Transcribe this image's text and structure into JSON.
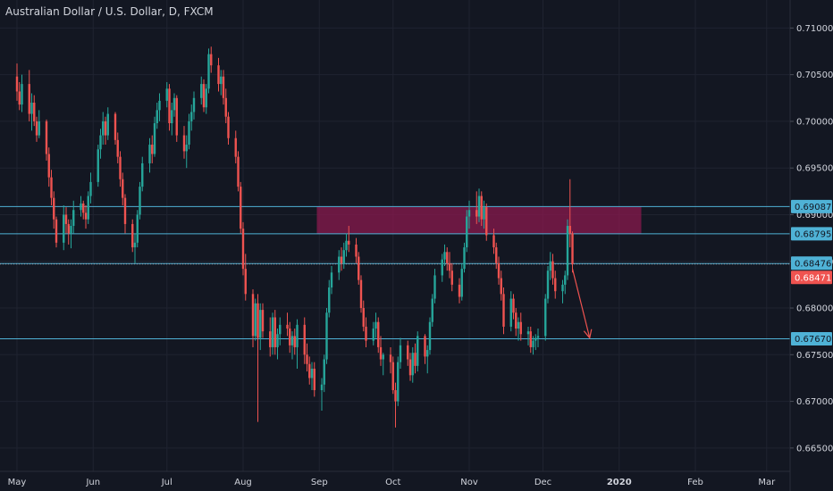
{
  "chart_title": "Australian Dollar / U.S. Dollar, D, FXCM",
  "colors": {
    "background": "#131722",
    "grid": "#1f2330",
    "up": "#26a69a",
    "down": "#ef5350",
    "level_line": "#4fb2d6",
    "zone_fill": "#8a1a4e",
    "price_tag_bg": "#4fb2d6",
    "current_price_bg": "#ef5350"
  },
  "chart_data": {
    "type": "candlestick",
    "title": "Australian Dollar / U.S. Dollar, D, FXCM",
    "x_tick_labels": [
      "May",
      "Jun",
      "Jul",
      "Aug",
      "Sep",
      "Oct",
      "Nov",
      "Dec",
      "2020",
      "Feb",
      "Mar"
    ],
    "y_tick_labels": [
      "0.71000",
      "0.70500",
      "0.70000",
      "0.69500",
      "0.69000",
      "0.68500",
      "0.68000",
      "0.67500",
      "0.67000",
      "0.66500"
    ],
    "ylim": [
      0.6625,
      0.713
    ],
    "levels": [
      {
        "label": "0.69087",
        "value": 0.69087
      },
      {
        "label": "0.68795",
        "value": 0.68795
      },
      {
        "label": "0.68476",
        "value": 0.68476
      },
      {
        "label": "0.67670",
        "value": 0.6767
      }
    ],
    "current_price": {
      "label": "0.68471",
      "value": 0.68471
    },
    "supply_zone": {
      "from": "Sep",
      "to": "Jan",
      "low": 0.68795,
      "high": 0.69087
    },
    "projection": {
      "from_date": "2019-12-13",
      "from_value": 0.6842,
      "to_date": "2019-12-20",
      "to_value": 0.6768
    },
    "candles": [
      [
        "2019-05-01",
        0.7048,
        0.7062,
        0.7022,
        0.7032
      ],
      [
        "2019-05-02",
        0.7032,
        0.7042,
        0.7012,
        0.7018
      ],
      [
        "2019-05-03",
        0.7018,
        0.705,
        0.701,
        0.704
      ],
      [
        "2019-05-06",
        0.704,
        0.7055,
        0.7,
        0.7008
      ],
      [
        "2019-05-07",
        0.7008,
        0.703,
        0.699,
        0.702
      ],
      [
        "2019-05-08",
        0.702,
        0.7028,
        0.6995,
        0.7
      ],
      [
        "2019-05-09",
        0.7,
        0.7005,
        0.6978,
        0.6985
      ],
      [
        "2019-05-10",
        0.6985,
        0.7012,
        0.6982,
        0.7
      ],
      [
        "2019-05-13",
        0.7,
        0.7002,
        0.6958,
        0.6965
      ],
      [
        "2019-05-14",
        0.6965,
        0.6972,
        0.693,
        0.694
      ],
      [
        "2019-05-15",
        0.694,
        0.6948,
        0.691,
        0.6918
      ],
      [
        "2019-05-16",
        0.6918,
        0.6925,
        0.6885,
        0.6895
      ],
      [
        "2019-05-17",
        0.6895,
        0.6898,
        0.6865,
        0.687
      ],
      [
        "2019-05-20",
        0.687,
        0.691,
        0.6862,
        0.69
      ],
      [
        "2019-05-21",
        0.69,
        0.6908,
        0.688,
        0.689
      ],
      [
        "2019-05-22",
        0.689,
        0.6895,
        0.6868,
        0.688
      ],
      [
        "2019-05-23",
        0.688,
        0.6895,
        0.6864,
        0.6888
      ],
      [
        "2019-05-24",
        0.6888,
        0.6915,
        0.688,
        0.6905
      ],
      [
        "2019-05-27",
        0.6905,
        0.692,
        0.6898,
        0.6912
      ],
      [
        "2019-05-28",
        0.6912,
        0.6915,
        0.6895,
        0.6902
      ],
      [
        "2019-05-29",
        0.6902,
        0.691,
        0.6885,
        0.6895
      ],
      [
        "2019-05-30",
        0.6895,
        0.6925,
        0.689,
        0.692
      ],
      [
        "2019-05-31",
        0.692,
        0.6945,
        0.6912,
        0.6935
      ],
      [
        "2019-06-03",
        0.6935,
        0.6975,
        0.693,
        0.697
      ],
      [
        "2019-06-04",
        0.697,
        0.6992,
        0.696,
        0.6985
      ],
      [
        "2019-06-05",
        0.6985,
        0.701,
        0.6975,
        0.7
      ],
      [
        "2019-06-06",
        0.7,
        0.7005,
        0.6975,
        0.6985
      ],
      [
        "2019-06-07",
        0.6985,
        0.7015,
        0.698,
        0.7008
      ],
      [
        "2019-06-10",
        0.7008,
        0.701,
        0.6975,
        0.698
      ],
      [
        "2019-06-11",
        0.698,
        0.6988,
        0.6955,
        0.6962
      ],
      [
        "2019-06-12",
        0.6962,
        0.6968,
        0.693,
        0.6938
      ],
      [
        "2019-06-13",
        0.6938,
        0.6945,
        0.691,
        0.6918
      ],
      [
        "2019-06-14",
        0.6918,
        0.6922,
        0.688,
        0.689
      ],
      [
        "2019-06-17",
        0.689,
        0.6895,
        0.686,
        0.6865
      ],
      [
        "2019-06-18",
        0.6865,
        0.688,
        0.6848,
        0.687
      ],
      [
        "2019-06-19",
        0.687,
        0.6905,
        0.6865,
        0.69
      ],
      [
        "2019-06-20",
        0.69,
        0.6935,
        0.6895,
        0.693
      ],
      [
        "2019-06-21",
        0.693,
        0.6962,
        0.6925,
        0.6955
      ],
      [
        "2019-06-24",
        0.6955,
        0.6982,
        0.6945,
        0.6975
      ],
      [
        "2019-06-25",
        0.6975,
        0.6985,
        0.6955,
        0.6965
      ],
      [
        "2019-06-26",
        0.6965,
        0.7005,
        0.6962,
        0.6998
      ],
      [
        "2019-06-27",
        0.6998,
        0.702,
        0.6992,
        0.7012
      ],
      [
        "2019-06-28",
        0.7012,
        0.703,
        0.7,
        0.7022
      ],
      [
        "2019-07-01",
        0.7022,
        0.7042,
        0.7015,
        0.7035
      ],
      [
        "2019-07-02",
        0.7035,
        0.704,
        0.699,
        0.6998
      ],
      [
        "2019-07-03",
        0.6998,
        0.702,
        0.6985,
        0.7012
      ],
      [
        "2019-07-04",
        0.7012,
        0.703,
        0.7005,
        0.7025
      ],
      [
        "2019-07-05",
        0.7025,
        0.7028,
        0.6978,
        0.6985
      ],
      [
        "2019-07-08",
        0.6985,
        0.6995,
        0.696,
        0.6968
      ],
      [
        "2019-07-09",
        0.6968,
        0.6985,
        0.695,
        0.6975
      ],
      [
        "2019-07-10",
        0.6975,
        0.7008,
        0.697,
        0.7
      ],
      [
        "2019-07-11",
        0.7,
        0.7018,
        0.699,
        0.701
      ],
      [
        "2019-07-12",
        0.701,
        0.7032,
        0.7002,
        0.7025
      ],
      [
        "2019-07-15",
        0.7025,
        0.7048,
        0.7018,
        0.704
      ],
      [
        "2019-07-16",
        0.704,
        0.7045,
        0.701,
        0.7015
      ],
      [
        "2019-07-17",
        0.7015,
        0.704,
        0.7008,
        0.7035
      ],
      [
        "2019-07-18",
        0.7035,
        0.7078,
        0.703,
        0.7072
      ],
      [
        "2019-07-19",
        0.7072,
        0.708,
        0.7052,
        0.706
      ],
      [
        "2019-07-22",
        0.706,
        0.7068,
        0.7032,
        0.704
      ],
      [
        "2019-07-23",
        0.704,
        0.7055,
        0.7028,
        0.7048
      ],
      [
        "2019-07-24",
        0.7048,
        0.7055,
        0.7018,
        0.7025
      ],
      [
        "2019-07-25",
        0.7025,
        0.7035,
        0.6998,
        0.7005
      ],
      [
        "2019-07-26",
        0.7005,
        0.701,
        0.6975,
        0.6982
      ],
      [
        "2019-07-29",
        0.6982,
        0.699,
        0.6955,
        0.6962
      ],
      [
        "2019-07-30",
        0.6962,
        0.6968,
        0.6925,
        0.693
      ],
      [
        "2019-07-31",
        0.693,
        0.6935,
        0.688,
        0.6885
      ],
      [
        "2019-08-01",
        0.6885,
        0.6892,
        0.6835,
        0.6842
      ],
      [
        "2019-08-02",
        0.6842,
        0.6858,
        0.6808,
        0.6815
      ],
      [
        "2019-08-05",
        0.6815,
        0.682,
        0.6758,
        0.677
      ],
      [
        "2019-08-06",
        0.677,
        0.681,
        0.6765,
        0.6805
      ],
      [
        "2019-08-07",
        0.6805,
        0.6815,
        0.6678,
        0.6768
      ],
      [
        "2019-08-08",
        0.6768,
        0.6805,
        0.6755,
        0.6798
      ],
      [
        "2019-08-09",
        0.6798,
        0.6805,
        0.6768,
        0.6775
      ],
      [
        "2019-08-12",
        0.6775,
        0.679,
        0.6748,
        0.6758
      ],
      [
        "2019-08-13",
        0.6758,
        0.6795,
        0.675,
        0.679
      ],
      [
        "2019-08-14",
        0.679,
        0.6798,
        0.675,
        0.6758
      ],
      [
        "2019-08-15",
        0.6758,
        0.6778,
        0.6745,
        0.6772
      ],
      [
        "2019-08-16",
        0.6772,
        0.679,
        0.676,
        0.6782
      ],
      [
        "2019-08-19",
        0.6782,
        0.6795,
        0.677,
        0.6778
      ],
      [
        "2019-08-20",
        0.6778,
        0.6785,
        0.6752,
        0.676
      ],
      [
        "2019-08-21",
        0.676,
        0.6775,
        0.6745,
        0.677
      ],
      [
        "2019-08-22",
        0.677,
        0.6778,
        0.675,
        0.6758
      ],
      [
        "2019-08-23",
        0.6758,
        0.6788,
        0.6735,
        0.6782
      ],
      [
        "2019-08-26",
        0.6782,
        0.679,
        0.674,
        0.675
      ],
      [
        "2019-08-27",
        0.675,
        0.6762,
        0.6732,
        0.674
      ],
      [
        "2019-08-28",
        0.674,
        0.6748,
        0.6718,
        0.6725
      ],
      [
        "2019-08-29",
        0.6725,
        0.6742,
        0.6712,
        0.6735
      ],
      [
        "2019-08-30",
        0.6735,
        0.6742,
        0.6705,
        0.6712
      ],
      [
        "2019-09-02",
        0.6712,
        0.6725,
        0.669,
        0.6718
      ],
      [
        "2019-09-03",
        0.6718,
        0.675,
        0.671,
        0.6745
      ],
      [
        "2019-09-04",
        0.6745,
        0.68,
        0.674,
        0.6795
      ],
      [
        "2019-09-05",
        0.6795,
        0.683,
        0.679,
        0.6822
      ],
      [
        "2019-09-06",
        0.6822,
        0.6845,
        0.6815,
        0.6838
      ],
      [
        "2019-09-09",
        0.6838,
        0.6862,
        0.683,
        0.6855
      ],
      [
        "2019-09-10",
        0.6855,
        0.6865,
        0.684,
        0.6848
      ],
      [
        "2019-09-11",
        0.6848,
        0.687,
        0.6842,
        0.6862
      ],
      [
        "2019-09-12",
        0.6862,
        0.688,
        0.6855,
        0.6872
      ],
      [
        "2019-09-13",
        0.6872,
        0.6888,
        0.686,
        0.6868
      ],
      [
        "2019-09-16",
        0.6868,
        0.6875,
        0.6848,
        0.6855
      ],
      [
        "2019-09-17",
        0.6855,
        0.686,
        0.6825,
        0.683
      ],
      [
        "2019-09-18",
        0.683,
        0.6835,
        0.6795,
        0.68
      ],
      [
        "2019-09-19",
        0.68,
        0.6808,
        0.6775,
        0.678
      ],
      [
        "2019-09-20",
        0.678,
        0.679,
        0.6758,
        0.6765
      ],
      [
        "2019-09-23",
        0.6765,
        0.6785,
        0.676,
        0.6778
      ],
      [
        "2019-09-24",
        0.6778,
        0.6795,
        0.6768,
        0.6785
      ],
      [
        "2019-09-25",
        0.6785,
        0.679,
        0.6752,
        0.6758
      ],
      [
        "2019-09-26",
        0.6758,
        0.677,
        0.6738,
        0.6745
      ],
      [
        "2019-09-27",
        0.6745,
        0.6752,
        0.6728,
        0.675
      ],
      [
        "2019-09-30",
        0.675,
        0.6758,
        0.673,
        0.6742
      ],
      [
        "2019-10-01",
        0.6742,
        0.6748,
        0.6708,
        0.6712
      ],
      [
        "2019-10-02",
        0.6712,
        0.672,
        0.6672,
        0.67
      ],
      [
        "2019-10-03",
        0.67,
        0.6748,
        0.6695,
        0.6742
      ],
      [
        "2019-10-04",
        0.6742,
        0.6768,
        0.6735,
        0.676
      ],
      [
        "2019-10-07",
        0.676,
        0.6765,
        0.6738,
        0.6745
      ],
      [
        "2019-10-08",
        0.6745,
        0.6752,
        0.6722,
        0.6728
      ],
      [
        "2019-10-09",
        0.6728,
        0.6758,
        0.672,
        0.6752
      ],
      [
        "2019-10-10",
        0.6752,
        0.6762,
        0.673,
        0.6738
      ],
      [
        "2019-10-11",
        0.6738,
        0.6775,
        0.6732,
        0.677
      ],
      [
        "2019-10-14",
        0.677,
        0.6772,
        0.674,
        0.6748
      ],
      [
        "2019-10-15",
        0.6748,
        0.676,
        0.673,
        0.6755
      ],
      [
        "2019-10-16",
        0.6755,
        0.679,
        0.675,
        0.6785
      ],
      [
        "2019-10-17",
        0.6785,
        0.6815,
        0.678,
        0.681
      ],
      [
        "2019-10-18",
        0.681,
        0.6842,
        0.6805,
        0.6835
      ],
      [
        "2019-10-21",
        0.6835,
        0.6858,
        0.6828,
        0.6852
      ],
      [
        "2019-10-22",
        0.6852,
        0.6868,
        0.6845,
        0.686
      ],
      [
        "2019-10-23",
        0.686,
        0.6865,
        0.684,
        0.6848
      ],
      [
        "2019-10-24",
        0.6848,
        0.686,
        0.6832,
        0.684
      ],
      [
        "2019-10-25",
        0.684,
        0.6848,
        0.6818,
        0.6825
      ],
      [
        "2019-10-28",
        0.6825,
        0.6832,
        0.6805,
        0.6812
      ],
      [
        "2019-10-29",
        0.6812,
        0.6848,
        0.6808,
        0.6842
      ],
      [
        "2019-10-30",
        0.6842,
        0.687,
        0.6838,
        0.6865
      ],
      [
        "2019-10-31",
        0.6865,
        0.6905,
        0.686,
        0.6898
      ],
      [
        "2019-11-01",
        0.6898,
        0.6915,
        0.6885,
        0.6905
      ],
      [
        "2019-11-04",
        0.6905,
        0.6925,
        0.689,
        0.6898
      ],
      [
        "2019-11-05",
        0.6898,
        0.6928,
        0.6892,
        0.692
      ],
      [
        "2019-11-06",
        0.692,
        0.6925,
        0.6888,
        0.6895
      ],
      [
        "2019-11-07",
        0.6895,
        0.6915,
        0.6885,
        0.6908
      ],
      [
        "2019-11-08",
        0.6908,
        0.6912,
        0.6872,
        0.6878
      ],
      [
        "2019-11-11",
        0.6878,
        0.6885,
        0.6858,
        0.6865
      ],
      [
        "2019-11-12",
        0.6865,
        0.687,
        0.6842,
        0.6848
      ],
      [
        "2019-11-13",
        0.6848,
        0.6855,
        0.6825,
        0.6832
      ],
      [
        "2019-11-14",
        0.6832,
        0.684,
        0.6808,
        0.6815
      ],
      [
        "2019-11-15",
        0.6815,
        0.6822,
        0.6772,
        0.678
      ],
      [
        "2019-11-18",
        0.678,
        0.6818,
        0.6775,
        0.681
      ],
      [
        "2019-11-19",
        0.681,
        0.6815,
        0.6788,
        0.6795
      ],
      [
        "2019-11-20",
        0.6795,
        0.68,
        0.677,
        0.6778
      ],
      [
        "2019-11-21",
        0.6778,
        0.679,
        0.6765,
        0.6785
      ],
      [
        "2019-11-22",
        0.6785,
        0.6795,
        0.6765,
        0.6772
      ],
      [
        "2019-11-25",
        0.6772,
        0.678,
        0.676,
        0.6775
      ],
      [
        "2019-11-26",
        0.6775,
        0.678,
        0.6752,
        0.6758
      ],
      [
        "2019-11-27",
        0.6758,
        0.677,
        0.675,
        0.6765
      ],
      [
        "2019-11-28",
        0.6765,
        0.6772,
        0.6755,
        0.6768
      ],
      [
        "2019-11-29",
        0.6768,
        0.6778,
        0.6758,
        0.677
      ],
      [
        "2019-12-02",
        0.677,
        0.6815,
        0.6765,
        0.681
      ],
      [
        "2019-12-03",
        0.681,
        0.6845,
        0.6805,
        0.684
      ],
      [
        "2019-12-04",
        0.684,
        0.686,
        0.683,
        0.685
      ],
      [
        "2019-12-05",
        0.685,
        0.6858,
        0.6825,
        0.6832
      ],
      [
        "2019-12-06",
        0.6832,
        0.684,
        0.681,
        0.6818
      ],
      [
        "2019-12-09",
        0.6818,
        0.683,
        0.6805,
        0.6825
      ],
      [
        "2019-12-10",
        0.6825,
        0.684,
        0.6815,
        0.6835
      ],
      [
        "2019-12-11",
        0.6835,
        0.6895,
        0.683,
        0.6888
      ],
      [
        "2019-12-12",
        0.6888,
        0.6938,
        0.6865,
        0.688
      ],
      [
        "2019-12-13",
        0.688,
        0.6882,
        0.6838,
        0.6847
      ]
    ]
  }
}
